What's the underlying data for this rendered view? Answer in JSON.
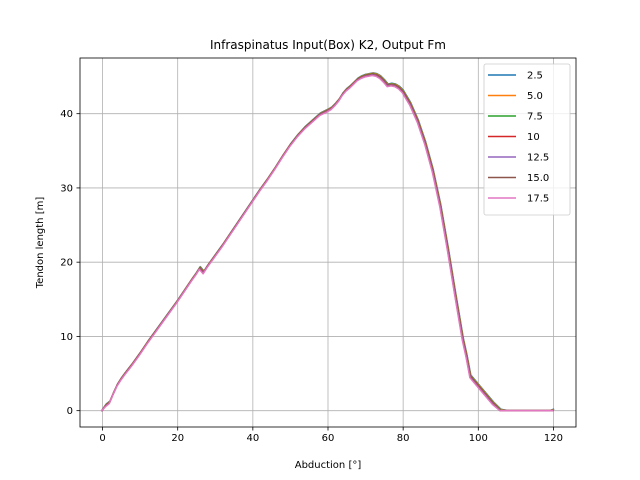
{
  "chart_data": {
    "type": "line",
    "title": "Infraspinatus Input(Box) K2, Output Fm",
    "xlabel": "Abduction [°]",
    "ylabel": "Tendon length [m]",
    "xlim": [
      -6,
      126
    ],
    "ylim": [
      -2.2,
      47.5
    ],
    "xticks": [
      0,
      20,
      40,
      60,
      80,
      100,
      120
    ],
    "yticks": [
      0,
      10,
      20,
      30,
      40
    ],
    "grid": true,
    "legend_position": "top-right",
    "x": [
      0,
      1,
      2,
      3,
      4,
      5,
      6,
      8,
      10,
      12,
      14,
      16,
      18,
      20,
      22,
      24,
      25,
      26,
      27,
      28,
      30,
      32,
      34,
      36,
      38,
      40,
      42,
      44,
      46,
      48,
      50,
      52,
      54,
      56,
      58,
      60,
      61,
      62,
      63,
      64,
      65,
      66,
      67,
      68,
      69,
      70,
      71,
      72,
      73,
      74,
      75,
      76,
      77,
      78,
      79,
      80,
      82,
      84,
      86,
      88,
      90,
      92,
      94,
      96,
      97,
      98,
      99,
      100,
      102,
      104,
      106,
      108,
      109,
      110,
      112,
      114,
      116,
      117,
      118,
      119,
      120
    ],
    "base_values": [
      1.2,
      1.9,
      2.3,
      3.5,
      4.6,
      5.4,
      6.1,
      7.4,
      8.8,
      10.3,
      11.7,
      13.1,
      14.5,
      15.9,
      17.4,
      18.9,
      19.6,
      20.4,
      19.8,
      20.6,
      22.0,
      23.4,
      24.9,
      26.4,
      27.9,
      29.4,
      30.9,
      32.3,
      33.8,
      35.4,
      36.9,
      38.2,
      39.3,
      40.2,
      41.1,
      41.6,
      41.9,
      42.4,
      43.0,
      43.8,
      44.4,
      44.8,
      45.3,
      45.8,
      46.1,
      46.3,
      46.4,
      46.5,
      46.4,
      46.1,
      45.6,
      45.0,
      45.1,
      45.0,
      44.7,
      44.2,
      42.5,
      40.2,
      37.2,
      33.5,
      28.8,
      23.0,
      16.8,
      10.8,
      8.5,
      5.8,
      5.2,
      4.6,
      3.4,
      2.2,
      1.2,
      0.3,
      0.0,
      0.0,
      0.0,
      0.0,
      0.0,
      0.2,
      0.4,
      0.8,
      1.2
    ],
    "series": [
      {
        "name": "2.5",
        "color": "#1f77b4",
        "y_offset": -1.0,
        "x_shift": 0.0
      },
      {
        "name": "5.0",
        "color": "#ff7f0e",
        "y_offset": -1.06,
        "x_shift": -0.04
      },
      {
        "name": "7.5",
        "color": "#2ca02c",
        "y_offset": -1.12,
        "x_shift": -0.08
      },
      {
        "name": "10",
        "color": "#d62728",
        "y_offset": -1.18,
        "x_shift": -0.12
      },
      {
        "name": "12.5",
        "color": "#9467bd",
        "y_offset": -1.24,
        "x_shift": -0.16
      },
      {
        "name": "15.0",
        "color": "#8c564b",
        "y_offset": -1.3,
        "x_shift": -0.2
      },
      {
        "name": "17.5",
        "color": "#e377c2",
        "y_offset": -1.36,
        "x_shift": -0.24
      }
    ]
  }
}
